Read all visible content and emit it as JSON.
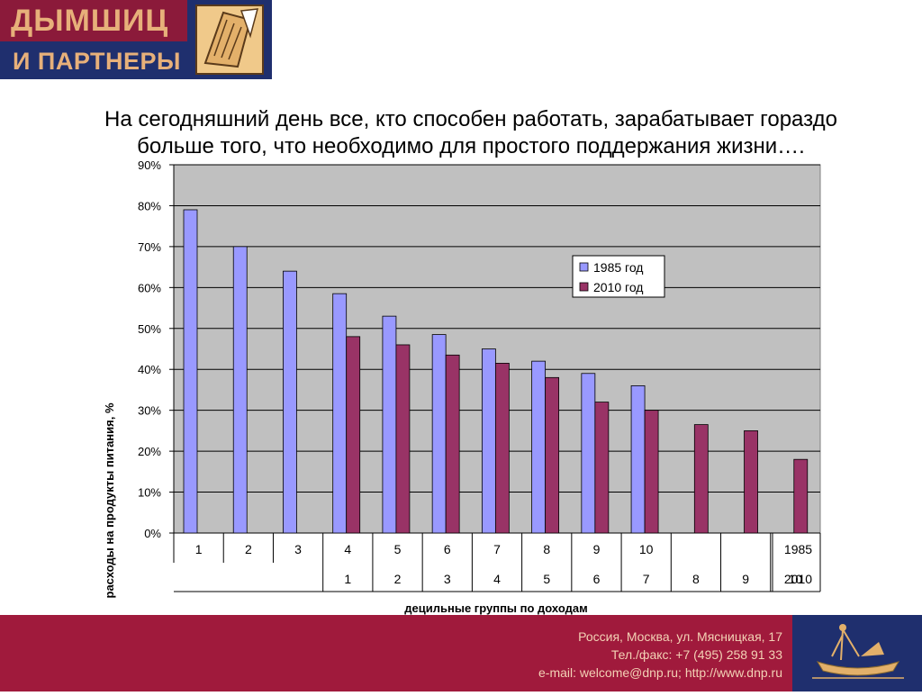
{
  "logo": {
    "line1": "ДЫМШИЦ",
    "line2": "И ПАРТНЕРЫ",
    "emblem_icon": "quill-document-icon"
  },
  "title": {
    "line1": "На сегодняшний день все, кто способен работать, зарабатывает гораздо",
    "line2": "больше того, что необходимо для простого поддержания жизни…."
  },
  "chart_data": {
    "type": "bar",
    "ylabel": "расходы на продукты питания, %",
    "xlabel": "децильные группы по доходам",
    "ylim": [
      0,
      90
    ],
    "yticks": [
      "0%",
      "10%",
      "20%",
      "30%",
      "40%",
      "50%",
      "60%",
      "70%",
      "80%",
      "90%"
    ],
    "grid": true,
    "legend_position": "right",
    "colors": {
      "1985 год": "#9999ff",
      "2010 год": "#993366",
      "plot_bg": "#c0c0c0"
    },
    "series": [
      {
        "name": "1985 год",
        "values": [
          79,
          70,
          64,
          58.5,
          53,
          48.5,
          45,
          42,
          39,
          36,
          null,
          null,
          null
        ]
      },
      {
        "name": "2010 год",
        "values": [
          null,
          null,
          null,
          48,
          46,
          43.5,
          41.5,
          38,
          32,
          30,
          26.5,
          25,
          18
        ]
      }
    ],
    "table_rows": [
      {
        "label": "1985",
        "cells": [
          "1",
          "2",
          "3",
          "4",
          "5",
          "6",
          "7",
          "8",
          "9",
          "10",
          "",
          "",
          ""
        ]
      },
      {
        "label": "2010",
        "cells": [
          "",
          "",
          "",
          "1",
          "2",
          "3",
          "4",
          "5",
          "6",
          "7",
          "8",
          "9",
          "10"
        ]
      }
    ]
  },
  "footer": {
    "address": "Россия, Москва, ул. Мясницкая, 17",
    "phone": "Тел./факс: +7 (495) 258 91 33",
    "contacts": "e-mail: welcome@dnp.ru; http://www.dnp.ru",
    "emblem_icon": "ship-emblem-icon"
  }
}
